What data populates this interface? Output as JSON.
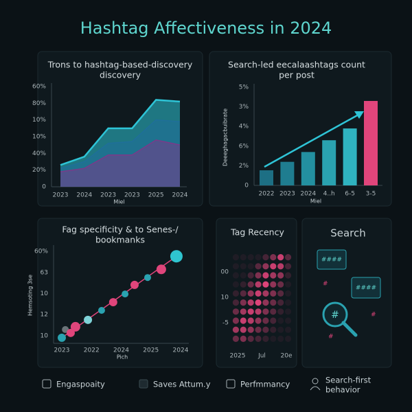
{
  "title": "Hashtag Affectiveness in 2024",
  "chart_data": [
    {
      "type": "area",
      "title": [
        "Trons to hashtag-based-discovery",
        "discovery"
      ],
      "x_label": "Miel",
      "categories": [
        "2023",
        "2024",
        "2023",
        "2023",
        "2025",
        "2024"
      ],
      "series": [
        {
          "color": "#2ec4d6",
          "values": [
            13,
            18,
            35,
            35,
            52,
            51
          ]
        },
        {
          "color": "#1f6f9a",
          "values": [
            11,
            15,
            26,
            27,
            40,
            39
          ]
        },
        {
          "color": "#7a3a8a",
          "values": [
            9,
            11,
            19,
            19,
            28,
            25
          ]
        }
      ],
      "ylim": [
        0,
        60
      ],
      "yticks": [
        0,
        {
          "value": 10,
          "label": "20%"
        },
        {
          "value": 20,
          "label": "40%"
        },
        {
          "value": 30,
          "label": "10%"
        },
        {
          "value": 40,
          "label": "10%"
        },
        {
          "value": 50,
          "label": "80%"
        },
        {
          "value": 60,
          "label": "60%"
        }
      ]
    },
    {
      "type": "bar",
      "title": [
        "Search-led eecalaashtags count",
        "per post"
      ],
      "x_label": "Miel",
      "y_label": "Deeeghagacbuibrate",
      "categories": [
        "2022",
        "2023",
        "2024",
        "4..h",
        "6-5",
        "3-5"
      ],
      "values": [
        0.77,
        1.2,
        1.7,
        2.3,
        2.9,
        4.3
      ],
      "colors": [
        "#1d6f84",
        "#1f7d90",
        "#2390a0",
        "#2aa2b0",
        "#2fb3c0",
        "#e0457b"
      ],
      "ylim": [
        0,
        5
      ],
      "yticks": [
        0,
        {
          "value": 1,
          "label": "2%"
        },
        {
          "value": 2,
          "label": "6%"
        },
        {
          "value": 3,
          "label": "4%"
        },
        {
          "value": 4,
          "label": "3%"
        },
        {
          "value": 5,
          "label": "5%"
        }
      ]
    },
    {
      "type": "scatter",
      "title": [
        "Fag specificity & to Senes-/",
        "bookmanks"
      ],
      "x_label": "Pich",
      "y_label": "Hemsoting 3se",
      "x": [
        0,
        0.12,
        0.3,
        0.46,
        0.88,
        1.34,
        1.73,
        2.13,
        2.45,
        2.89,
        3.35,
        3.86
      ],
      "values": [
        -0.1,
        0.29,
        0.13,
        0.42,
        0.75,
        1.2,
        1.59,
        1.98,
        2.41,
        2.76,
        3.15,
        3.77
      ],
      "sizes": [
        6,
        5,
        6,
        7,
        6,
        5,
        6,
        5,
        6,
        5,
        7,
        9
      ],
      "colors": [
        "#2aa2b0",
        "#6a7479",
        "#e0457b",
        "#e0457b",
        "#7fd3d8",
        "#2aa2b0",
        "#e0457b",
        "#2aa2b0",
        "#e0457b",
        "#2aa2b0",
        "#e0457b",
        "#2fc4cf"
      ],
      "xlim": [
        0,
        4
      ],
      "ylim": [
        -0.3,
        4.3
      ],
      "xticks": [
        {
          "value": 0,
          "label": "2023"
        },
        {
          "value": 1,
          "label": "2022"
        },
        {
          "value": 2,
          "label": "2024"
        },
        {
          "value": 3,
          "label": "2025"
        },
        {
          "value": 4,
          "label": "2024"
        }
      ],
      "yticks": [
        {
          "value": 0,
          "label": "10"
        },
        {
          "value": 1,
          "label": "12"
        },
        {
          "value": 2,
          "label": "10"
        },
        {
          "value": 3,
          "label": "63"
        },
        {
          "value": 4,
          "label": "60%"
        }
      ]
    },
    {
      "type": "heatmap",
      "title": "Tag Recency",
      "color": "#e0457b",
      "x_labels": [
        "2025",
        "Jul",
        "20e"
      ],
      "y_labels": [
        "00",
        "10",
        "-5"
      ],
      "values": [
        [
          0,
          0,
          0,
          0,
          0.2,
          0.5,
          0.9,
          0.3
        ],
        [
          0,
          0,
          0,
          0.3,
          0.6,
          0.9,
          0.8,
          0.2
        ],
        [
          0,
          0,
          0.2,
          0.5,
          0.9,
          0.7,
          0.6,
          0.1
        ],
        [
          0,
          0.1,
          0.4,
          0.8,
          1,
          0.6,
          0.4,
          0
        ],
        [
          0.1,
          0.3,
          0.6,
          0.9,
          0.7,
          0.5,
          0.3,
          0
        ],
        [
          0.2,
          0.5,
          0.8,
          1,
          0.6,
          0.4,
          0.2,
          0
        ],
        [
          0.4,
          0.7,
          0.9,
          0.8,
          0.5,
          0.3,
          0.1,
          0
        ],
        [
          0.5,
          0.9,
          0.8,
          0.6,
          0.4,
          0.2,
          0,
          0
        ],
        [
          0.7,
          0.8,
          0.6,
          0.4,
          0.3,
          0.1,
          0,
          0
        ],
        [
          0.4,
          0.5,
          0.3,
          0.2,
          0.1,
          0,
          0,
          0
        ]
      ]
    }
  ],
  "search_panel": {
    "title": "Search"
  },
  "legend": [
    "Engaspoaity",
    "Saves Attum.y",
    "Perfmmancy",
    [
      "Search-first",
      "behavior"
    ]
  ]
}
